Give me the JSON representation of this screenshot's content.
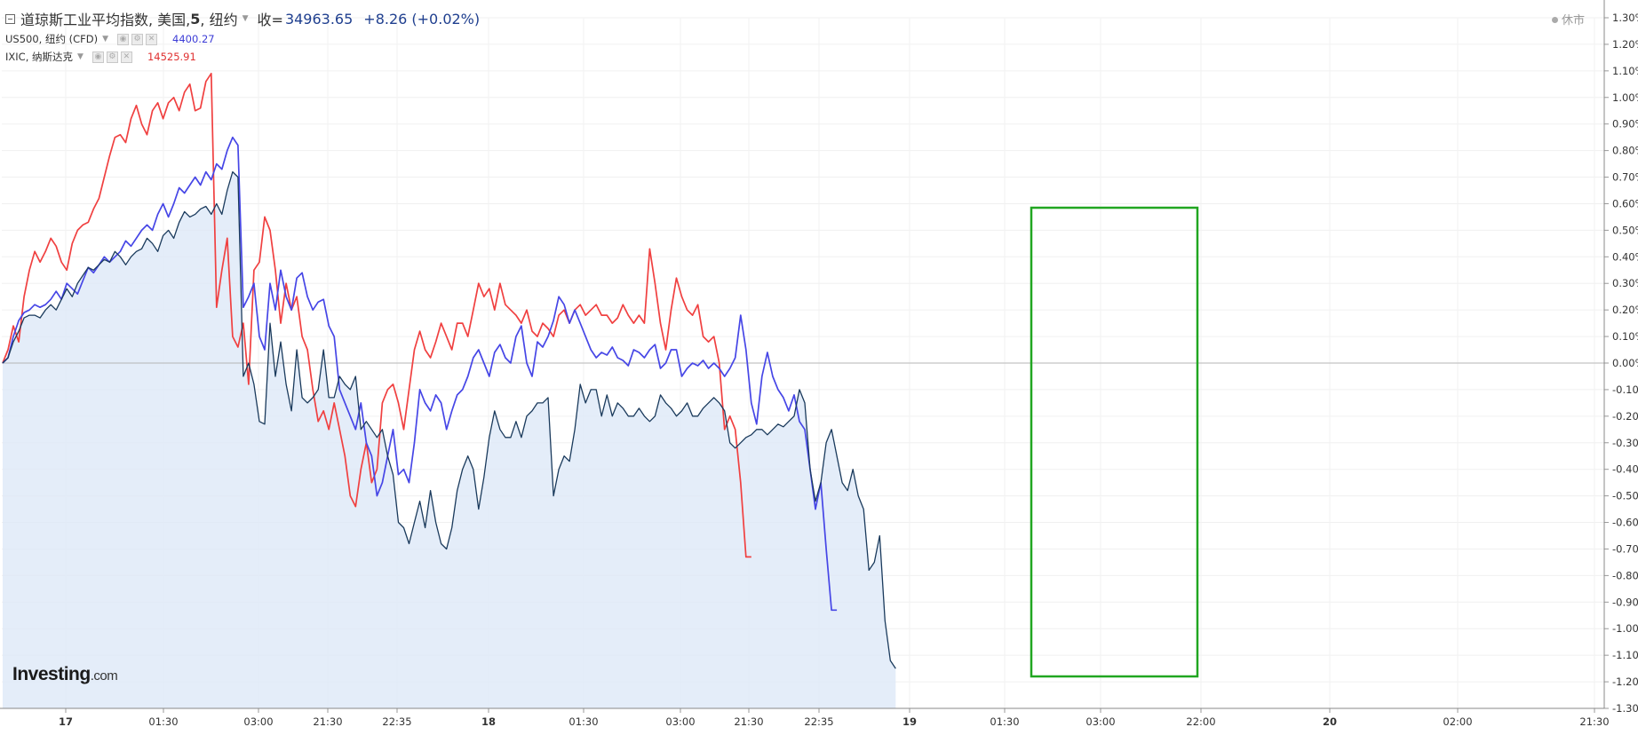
{
  "legend": {
    "main": {
      "name": "道琼斯工业平均指数, 美国, ",
      "interval": "5",
      "exchange": ", 纽约",
      "close_label": "收=",
      "close_value": "34963.65",
      "change": "+8.26 (+0.02%)",
      "color": "#1a3a5c"
    },
    "compare": [
      {
        "name": "US500, 纽约 (CFD)",
        "value": "4400.27",
        "color": "#3d3dd6"
      },
      {
        "name": "IXIC, 纳斯达克",
        "value": "14525.91",
        "color": "#e03030"
      }
    ]
  },
  "status": "休市",
  "logo": {
    "brand": "Investing",
    "suffix": ".com"
  },
  "chart_data": {
    "type": "line",
    "y_unit": "percent change",
    "ylim": [
      -1.3,
      1.3
    ],
    "y_ticks": [
      1.3,
      1.2,
      1.1,
      1.0,
      0.9,
      0.8,
      0.7,
      0.6,
      0.5,
      0.4,
      0.3,
      0.2,
      0.1,
      0.0,
      -0.1,
      -0.2,
      -0.3,
      -0.4,
      -0.5,
      -0.6,
      -0.7,
      -0.8,
      -0.9,
      -1.0,
      -1.1,
      -1.2,
      -1.3
    ],
    "y_tick_labels": [
      "1.30%",
      "1.20%",
      "1.10%",
      "1.00%",
      "0.90%",
      "0.80%",
      "0.70%",
      "0.60%",
      "0.50%",
      "0.40%",
      "0.30%",
      "0.20%",
      "0.10%",
      "0.00%",
      "-0.10%",
      "-0.20%",
      "-0.30%",
      "-0.40%",
      "-0.50%",
      "-0.60%",
      "-0.70%",
      "-0.80%",
      "-0.90%",
      "-1.00%",
      "-1.10%",
      "-1.20%",
      "-1.30%"
    ],
    "x_tick_labels": [
      "17",
      "01:30",
      "03:00",
      "21:30",
      "22:35",
      "18",
      "01:30",
      "03:00",
      "21:30",
      "22:35",
      "19",
      "01:30",
      "03:00",
      "22:00",
      "20",
      "02:00",
      "21:30"
    ],
    "x_tick_bold": [
      true,
      false,
      false,
      false,
      false,
      true,
      false,
      false,
      false,
      false,
      true,
      false,
      false,
      false,
      true,
      false,
      false
    ],
    "grid": true,
    "series": [
      {
        "color": "#1a3a5c",
        "area_fill": "#dde9f7",
        "values": [
          0.0,
          0.02,
          0.08,
          0.12,
          0.17,
          0.18,
          0.18,
          0.17,
          0.2,
          0.22,
          0.2,
          0.24,
          0.28,
          0.25,
          0.3,
          0.33,
          0.36,
          0.35,
          0.37,
          0.39,
          0.38,
          0.42,
          0.4,
          0.37,
          0.4,
          0.42,
          0.43,
          0.47,
          0.45,
          0.42,
          0.48,
          0.5,
          0.47,
          0.53,
          0.57,
          0.55,
          0.56,
          0.58,
          0.59,
          0.56,
          0.6,
          0.56,
          0.65,
          0.72,
          0.7,
          -0.05,
          0.0,
          -0.08,
          -0.22,
          -0.23,
          0.15,
          -0.05,
          0.08,
          -0.08,
          -0.18,
          0.05,
          -0.13,
          -0.15,
          -0.13,
          -0.1,
          0.05,
          -0.13,
          -0.13,
          -0.05,
          -0.08,
          -0.1,
          -0.05,
          -0.25,
          -0.22,
          -0.25,
          -0.28,
          -0.25,
          -0.35,
          -0.42,
          -0.6,
          -0.62,
          -0.68,
          -0.6,
          -0.52,
          -0.62,
          -0.48,
          -0.6,
          -0.68,
          -0.7,
          -0.62,
          -0.48,
          -0.4,
          -0.35,
          -0.4,
          -0.55,
          -0.43,
          -0.28,
          -0.18,
          -0.25,
          -0.28,
          -0.28,
          -0.22,
          -0.28,
          -0.2,
          -0.18,
          -0.15,
          -0.15,
          -0.13,
          -0.5,
          -0.4,
          -0.35,
          -0.37,
          -0.25,
          -0.08,
          -0.15,
          -0.1,
          -0.1,
          -0.2,
          -0.12,
          -0.2,
          -0.15,
          -0.17,
          -0.2,
          -0.2,
          -0.17,
          -0.2,
          -0.22,
          -0.2,
          -0.12,
          -0.15,
          -0.17,
          -0.2,
          -0.18,
          -0.15,
          -0.2,
          -0.2,
          -0.17,
          -0.15,
          -0.13,
          -0.15,
          -0.18,
          -0.3,
          -0.32,
          -0.3,
          -0.28,
          -0.27,
          -0.25,
          -0.25,
          -0.27,
          -0.25,
          -0.23,
          -0.24,
          -0.22,
          -0.2,
          -0.1,
          -0.15,
          -0.4,
          -0.52,
          -0.45,
          -0.3,
          -0.25,
          -0.35,
          -0.45,
          -0.48,
          -0.4,
          -0.5,
          -0.55,
          -0.78,
          -0.75,
          -0.65,
          -0.97,
          -1.12,
          -1.15
        ],
        "start_index": 0
      },
      {
        "color": "#4646e6",
        "values": [
          0.0,
          0.02,
          0.1,
          0.16,
          0.19,
          0.2,
          0.22,
          0.21,
          0.22,
          0.24,
          0.27,
          0.24,
          0.3,
          0.28,
          0.26,
          0.31,
          0.36,
          0.34,
          0.37,
          0.4,
          0.38,
          0.4,
          0.42,
          0.46,
          0.44,
          0.47,
          0.5,
          0.52,
          0.5,
          0.56,
          0.6,
          0.55,
          0.6,
          0.66,
          0.64,
          0.67,
          0.7,
          0.67,
          0.72,
          0.69,
          0.75,
          0.73,
          0.8,
          0.85,
          0.82,
          0.21,
          0.25,
          0.3,
          0.1,
          0.05,
          0.3,
          0.2,
          0.35,
          0.25,
          0.2,
          0.32,
          0.34,
          0.25,
          0.2,
          0.23,
          0.24,
          0.14,
          0.1,
          -0.1,
          -0.15,
          -0.2,
          -0.25,
          -0.15,
          -0.3,
          -0.35,
          -0.5,
          -0.45,
          -0.35,
          -0.25,
          -0.42,
          -0.4,
          -0.45,
          -0.3,
          -0.1,
          -0.15,
          -0.18,
          -0.12,
          -0.15,
          -0.25,
          -0.18,
          -0.12,
          -0.1,
          -0.05,
          0.02,
          0.05,
          0.0,
          -0.05,
          0.04,
          0.07,
          0.02,
          0.0,
          0.1,
          0.14,
          0.0,
          -0.05,
          0.08,
          0.06,
          0.1,
          0.16,
          0.25,
          0.22,
          0.15,
          0.2,
          0.15,
          0.1,
          0.05,
          0.02,
          0.04,
          0.03,
          0.06,
          0.02,
          0.01,
          -0.01,
          0.05,
          0.04,
          0.02,
          0.05,
          0.07,
          -0.02,
          0.0,
          0.05,
          0.05,
          -0.05,
          -0.02,
          0.0,
          -0.01,
          0.01,
          -0.02,
          0.0,
          -0.02,
          -0.05,
          -0.02,
          0.02,
          0.18,
          0.05,
          -0.15,
          -0.23,
          -0.05,
          0.04,
          -0.05,
          -0.1,
          -0.13,
          -0.18,
          -0.12,
          -0.22,
          -0.25,
          -0.4,
          -0.55,
          -0.45,
          -0.7,
          -0.93,
          -0.93
        ],
        "start_index": 0
      },
      {
        "color": "#f04040",
        "values": [
          0.0,
          0.05,
          0.14,
          0.08,
          0.25,
          0.35,
          0.42,
          0.38,
          0.42,
          0.47,
          0.44,
          0.38,
          0.35,
          0.45,
          0.5,
          0.52,
          0.53,
          0.58,
          0.62,
          0.7,
          0.78,
          0.85,
          0.86,
          0.83,
          0.92,
          0.97,
          0.9,
          0.86,
          0.95,
          0.98,
          0.92,
          0.98,
          1.0,
          0.95,
          1.02,
          1.05,
          0.95,
          0.96,
          1.06,
          1.09,
          0.21,
          0.35,
          0.47,
          0.1,
          0.06,
          0.15,
          -0.08,
          0.35,
          0.38,
          0.55,
          0.5,
          0.35,
          0.15,
          0.3,
          0.2,
          0.25,
          0.1,
          0.05,
          -0.1,
          -0.22,
          -0.18,
          -0.25,
          -0.15,
          -0.25,
          -0.35,
          -0.5,
          -0.54,
          -0.4,
          -0.3,
          -0.45,
          -0.4,
          -0.15,
          -0.1,
          -0.08,
          -0.15,
          -0.25,
          -0.1,
          0.05,
          0.12,
          0.05,
          0.02,
          0.08,
          0.15,
          0.1,
          0.05,
          0.15,
          0.15,
          0.1,
          0.2,
          0.3,
          0.25,
          0.28,
          0.2,
          0.3,
          0.22,
          0.2,
          0.18,
          0.15,
          0.2,
          0.12,
          0.1,
          0.15,
          0.13,
          0.1,
          0.18,
          0.2,
          0.15,
          0.2,
          0.22,
          0.18,
          0.2,
          0.22,
          0.18,
          0.18,
          0.15,
          0.17,
          0.22,
          0.18,
          0.15,
          0.18,
          0.15,
          0.43,
          0.3,
          0.15,
          0.05,
          0.2,
          0.32,
          0.25,
          0.2,
          0.18,
          0.22,
          0.1,
          0.08,
          0.1,
          0.0,
          -0.25,
          -0.2,
          -0.25,
          -0.45,
          -0.73,
          -0.73
        ],
        "start_index": 0
      }
    ],
    "annotation": {
      "type": "rectangle",
      "color": "#21a621"
    }
  }
}
